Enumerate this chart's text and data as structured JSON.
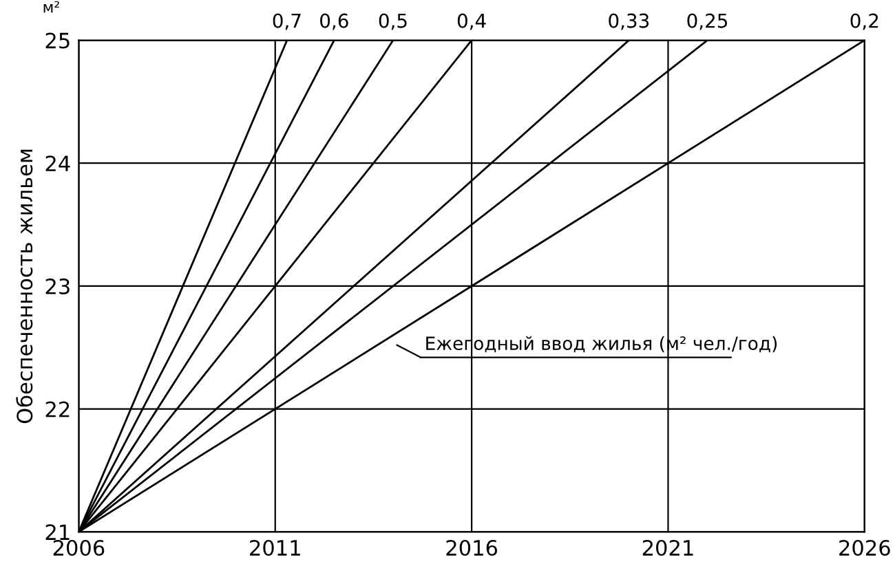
{
  "chart_data": {
    "type": "line",
    "ylabel": "Обеспеченность жильем",
    "annotations": [
      "м²",
      "Ежегодный ввод жилья (м² чел./год)"
    ],
    "series": [
      {
        "name": "0,7",
        "color": "#000000",
        "x": [
          2006,
          2011.3
        ],
        "values": [
          21,
          25
        ]
      },
      {
        "name": "0,6",
        "color": "#000000",
        "x": [
          2006,
          2012.5
        ],
        "values": [
          21,
          25
        ]
      },
      {
        "name": "0,5",
        "color": "#000000",
        "x": [
          2006,
          2014
        ],
        "values": [
          21,
          25
        ]
      },
      {
        "name": "0,4",
        "color": "#000000",
        "x": [
          2006,
          2016
        ],
        "values": [
          21,
          25
        ]
      },
      {
        "name": "0,33",
        "color": "#000000",
        "x": [
          2006,
          2020
        ],
        "values": [
          21,
          25
        ]
      },
      {
        "name": "0,25",
        "color": "#000000",
        "x": [
          2006,
          2022
        ],
        "values": [
          21,
          25
        ]
      },
      {
        "name": "0,2",
        "color": "#000000",
        "x": [
          2006,
          2026
        ],
        "values": [
          21,
          25
        ]
      }
    ],
    "xlim": [
      2006,
      2026
    ],
    "xticks": [
      2006,
      2011,
      2016,
      2021,
      2026
    ],
    "ylim": [
      21,
      25
    ],
    "yticks": [
      21,
      22,
      23,
      24,
      25
    ],
    "grid": true,
    "marker": "none",
    "line_style": "solid",
    "legend": false
  }
}
